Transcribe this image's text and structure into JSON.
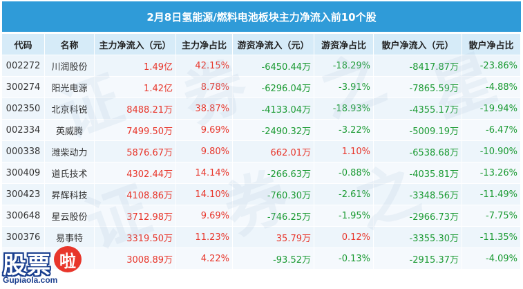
{
  "title": "2月8日氢能源/燃料电池板块主力净流入前10个股",
  "columns": [
    "代码",
    "名称",
    "主力净流入（元）",
    "主力净占比",
    "游资净流入（元）",
    "游资净占比",
    "散户净流入（元）",
    "散户净占比"
  ],
  "rows": [
    {
      "code": "002272",
      "name": "川润股份",
      "main_in": "1.49亿",
      "main_pct": "42.15%",
      "hot_in": "-6450.44万",
      "hot_pct": "-18.29%",
      "retail_in": "-8417.87万",
      "retail_pct": "-23.86%"
    },
    {
      "code": "300274",
      "name": "阳光电源",
      "main_in": "1.42亿",
      "main_pct": "8.78%",
      "hot_in": "-6296.04万",
      "hot_pct": "-3.91%",
      "retail_in": "-7865.59万",
      "retail_pct": "-4.88%"
    },
    {
      "code": "002350",
      "name": "北京科锐",
      "main_in": "8488.21万",
      "main_pct": "38.87%",
      "hot_in": "-4133.04万",
      "hot_pct": "-18.93%",
      "retail_in": "-4355.17万",
      "retail_pct": "-19.94%"
    },
    {
      "code": "002334",
      "name": "英威腾",
      "main_in": "7499.50万",
      "main_pct": "9.69%",
      "hot_in": "-2490.32万",
      "hot_pct": "-3.22%",
      "retail_in": "-5009.19万",
      "retail_pct": "-6.47%"
    },
    {
      "code": "000338",
      "name": "潍柴动力",
      "main_in": "5876.67万",
      "main_pct": "9.80%",
      "hot_in": "662.01万",
      "hot_pct": "1.10%",
      "retail_in": "-6538.68万",
      "retail_pct": "-10.90%"
    },
    {
      "code": "300409",
      "name": "道氏技术",
      "main_in": "4302.44万",
      "main_pct": "14.14%",
      "hot_in": "-266.63万",
      "hot_pct": "-0.88%",
      "retail_in": "-4035.81万",
      "retail_pct": "-13.26%"
    },
    {
      "code": "300423",
      "name": "昇辉科技",
      "main_in": "4108.86万",
      "main_pct": "14.10%",
      "hot_in": "-760.30万",
      "hot_pct": "-2.61%",
      "retail_in": "-3348.56万",
      "retail_pct": "-11.49%"
    },
    {
      "code": "300648",
      "name": "星云股份",
      "main_in": "3712.98万",
      "main_pct": "9.69%",
      "hot_in": "-746.25万",
      "hot_pct": "-1.95%",
      "retail_in": "-2966.73万",
      "retail_pct": "-7.75%"
    },
    {
      "code": "300376",
      "name": "易事特",
      "main_in": "3319.50万",
      "main_pct": "11.23%",
      "hot_in": "35.79万",
      "hot_pct": "0.12%",
      "retail_in": "-3355.30万",
      "retail_pct": "-11.35%"
    },
    {
      "code": "",
      "name": "",
      "main_in": "3008.89万",
      "main_pct": "4.22%",
      "hot_in": "-93.52万",
      "hot_pct": "-0.13%",
      "retail_in": "-2915.37万",
      "retail_pct": "-4.09%"
    }
  ],
  "logo": {
    "mark": "股票",
    "accent": "啦",
    "url": "Gupiaola.com"
  },
  "colors": {
    "header": "#2f9bd8",
    "positive": "#e8362b",
    "negative": "#1a9a32"
  }
}
